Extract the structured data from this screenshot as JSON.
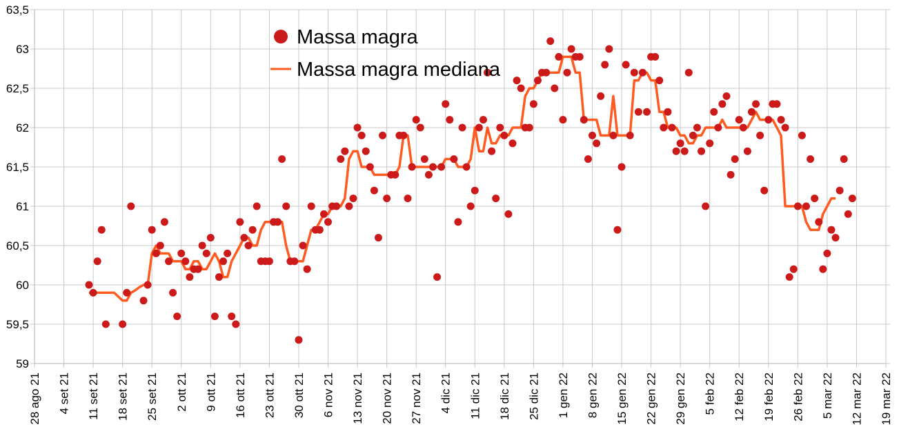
{
  "chart_data": {
    "type": "scatter+line",
    "title": "",
    "xlabel": "",
    "ylabel": "",
    "ylim": [
      59,
      63.5
    ],
    "y_ticks": [
      "59",
      "59,5",
      "60",
      "60,5",
      "61",
      "61,5",
      "62",
      "62,5",
      "63",
      "63,5"
    ],
    "x_ticks": [
      "28 ago 21",
      "4 set 21",
      "11 set 21",
      "18 set 21",
      "25 set 21",
      "2 ott 21",
      "9 ott 21",
      "16 ott 21",
      "23 ott 21",
      "30 ott 21",
      "6 nov 21",
      "13 nov 21",
      "20 nov 21",
      "27 nov 21",
      "4 dic 21",
      "11 dic 21",
      "18 dic 21",
      "25 dic 21",
      "1 gen 22",
      "8 gen 22",
      "15 gen 22",
      "22 gen 22",
      "29 gen 22",
      "5 feb 22",
      "12 feb 22",
      "19 feb 22",
      "26 feb 22",
      "5 mar 22",
      "12 mar 22",
      "19 mar 22"
    ],
    "x_unit": "days since 28 ago 21",
    "xlim": [
      0,
      203
    ],
    "grid": true,
    "legend_position": "top-center",
    "legend": [
      "Massa magra",
      "Massa magra mediana"
    ],
    "colors": {
      "points": "#cc1a1a",
      "median": "#ff5a1f",
      "grid": "#c8c8c8"
    },
    "series": [
      {
        "name": "Massa magra",
        "type": "scatter",
        "start_day": 13,
        "values": [
          60.0,
          59.9,
          60.3,
          60.7,
          59.5,
          null,
          null,
          null,
          59.5,
          59.9,
          61.0,
          null,
          null,
          59.8,
          60.0,
          60.7,
          60.4,
          60.5,
          60.8,
          60.3,
          59.9,
          59.6,
          60.4,
          60.3,
          60.1,
          60.2,
          60.2,
          60.5,
          60.4,
          60.6,
          59.6,
          60.1,
          60.3,
          60.4,
          59.6,
          59.5,
          60.8,
          60.6,
          60.5,
          60.7,
          61.0,
          60.3,
          60.3,
          60.3,
          60.8,
          60.8,
          61.6,
          61.0,
          60.3,
          60.3,
          59.3,
          60.5,
          60.2,
          61.0,
          60.7,
          60.7,
          60.9,
          60.8,
          61.0,
          61.0,
          61.6,
          61.7,
          61.0,
          61.1,
          62.0,
          61.9,
          61.7,
          61.5,
          61.2,
          60.6,
          61.9,
          61.1,
          61.4,
          61.4,
          61.9,
          61.9,
          61.1,
          61.5,
          62.1,
          62.0,
          61.6,
          61.4,
          61.5,
          60.1,
          61.5,
          62.3,
          62.1,
          61.6,
          60.8,
          62.0,
          61.5,
          61.0,
          61.2,
          62.0,
          62.1,
          62.7,
          61.7,
          61.1,
          62.0,
          61.9,
          60.9,
          61.8,
          62.6,
          62.5,
          62.0,
          62.0,
          62.3,
          62.6,
          62.7,
          62.7,
          63.1,
          62.5,
          62.9,
          62.1,
          62.7,
          63.0,
          62.9,
          62.9,
          62.1,
          61.6,
          61.9,
          61.8,
          62.4,
          62.8,
          63.0,
          61.9,
          60.7,
          61.5,
          62.8,
          61.9,
          62.7,
          62.2,
          62.7,
          62.2,
          62.9,
          62.9,
          62.6,
          62.0,
          62.2,
          62.0,
          61.7,
          61.8,
          61.7,
          62.7,
          61.9,
          62.0,
          61.7,
          61.0,
          61.8,
          62.2,
          62.0,
          62.3,
          62.4,
          61.4,
          61.6,
          62.1,
          62.0,
          61.7,
          62.2,
          62.3,
          61.9,
          61.2,
          62.1,
          62.3,
          62.3,
          62.1,
          62.0,
          60.1,
          60.2,
          61.0,
          61.9,
          61.0,
          61.6,
          61.1,
          60.8,
          60.2,
          60.4,
          60.7,
          60.6,
          61.2,
          61.6,
          60.9,
          61.1
        ]
      },
      {
        "name": "Massa magra mediana",
        "type": "line",
        "start_day": 13,
        "values": [
          59.9,
          59.9,
          59.9,
          59.9,
          59.9,
          59.9,
          59.9,
          59.85,
          59.8,
          59.8,
          59.9,
          59.93,
          59.97,
          60.0,
          60.0,
          60.4,
          60.5,
          60.4,
          60.4,
          60.4,
          60.3,
          60.3,
          60.3,
          60.2,
          60.2,
          60.3,
          60.3,
          60.2,
          60.2,
          60.3,
          60.4,
          60.3,
          60.1,
          60.1,
          60.3,
          60.4,
          60.5,
          60.6,
          60.6,
          60.5,
          60.5,
          60.7,
          60.8,
          60.8,
          60.8,
          60.8,
          60.8,
          60.5,
          60.3,
          60.3,
          60.3,
          60.3,
          60.5,
          60.7,
          60.7,
          60.8,
          60.9,
          60.9,
          61.0,
          61.0,
          61.0,
          61.1,
          61.6,
          61.7,
          61.7,
          61.5,
          61.5,
          61.5,
          61.4,
          61.4,
          61.4,
          61.4,
          61.4,
          61.4,
          61.5,
          61.9,
          61.9,
          61.5,
          61.5,
          61.5,
          61.5,
          61.5,
          61.5,
          61.5,
          61.5,
          61.6,
          61.6,
          61.6,
          61.5,
          61.5,
          61.5,
          61.6,
          62.0,
          61.7,
          61.7,
          62.0,
          61.8,
          61.8,
          61.9,
          61.9,
          61.9,
          62.0,
          62.0,
          62.0,
          62.4,
          62.5,
          62.5,
          62.6,
          62.7,
          62.7,
          62.7,
          62.7,
          62.7,
          62.9,
          62.9,
          62.9,
          62.7,
          62.7,
          62.1,
          62.1,
          62.1,
          62.1,
          61.9,
          61.9,
          61.9,
          62.4,
          61.9,
          61.9,
          61.9,
          61.9,
          62.6,
          62.6,
          62.7,
          62.7,
          62.6,
          62.6,
          62.2,
          62.2,
          62.0,
          62.0,
          62.0,
          61.9,
          61.9,
          61.8,
          61.8,
          61.9,
          61.9,
          62.0,
          62.0,
          62.0,
          62.0,
          62.1,
          62.0,
          62.0,
          62.0,
          62.0,
          62.0,
          62.0,
          62.1,
          62.2,
          62.1,
          62.1,
          62.1,
          62.1,
          62.0,
          61.9,
          61.0,
          61.0,
          61.0,
          61.0,
          61.0,
          60.8,
          60.7,
          60.7,
          60.7,
          60.9,
          61.0,
          61.1,
          61.1
        ]
      }
    ]
  }
}
